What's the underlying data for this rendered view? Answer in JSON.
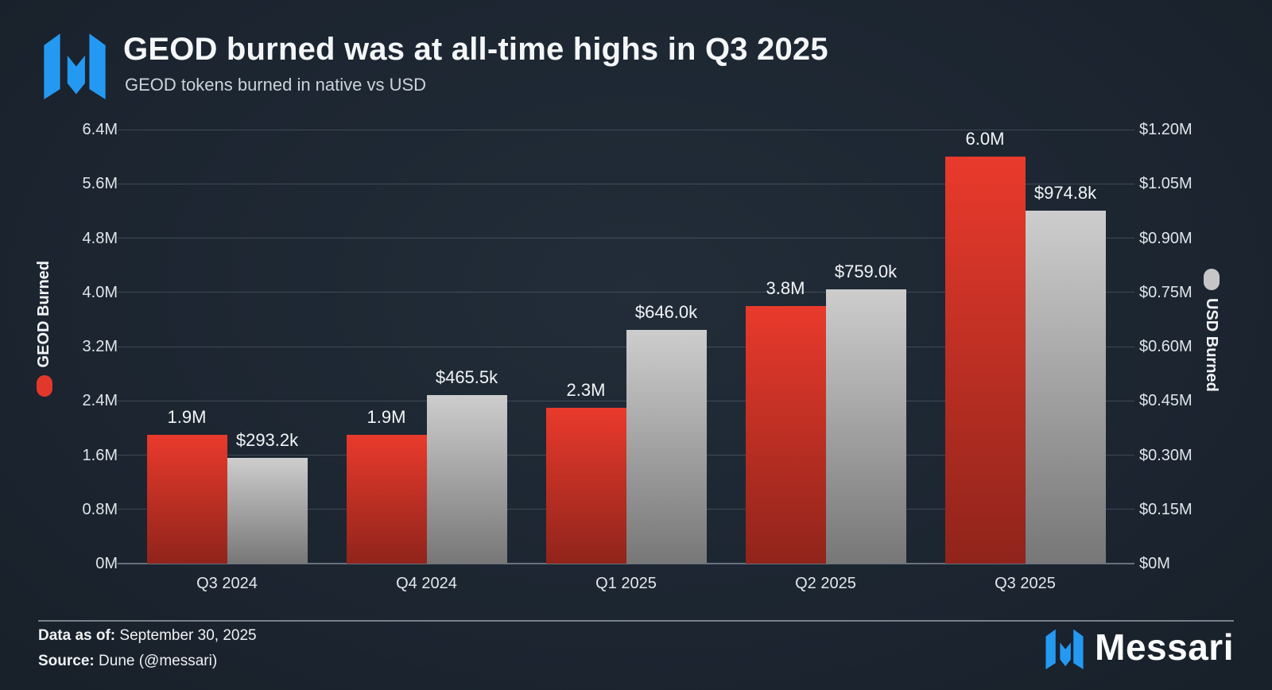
{
  "header": {
    "title": "GEOD burned was at all-time highs in Q3 2025",
    "subtitle": "GEOD tokens burned in native vs USD",
    "logo_icon": "messari-logo"
  },
  "chart_data": {
    "type": "bar",
    "title": "GEOD burned was at all-time highs in Q3 2025",
    "subtitle": "GEOD tokens burned in native vs USD",
    "categories": [
      "Q3 2024",
      "Q4 2024",
      "Q1 2025",
      "Q2 2025",
      "Q3 2025"
    ],
    "series": [
      {
        "name": "GEOD Burned",
        "axis": "left",
        "unit": "M GEOD",
        "values": [
          1.9,
          1.9,
          2.3,
          3.8,
          6.0
        ],
        "labels": [
          "1.9M",
          "1.9M",
          "2.3M",
          "3.8M",
          "6.0M"
        ],
        "color_top": "#e93a2c",
        "color_bottom": "#90241b"
      },
      {
        "name": "USD Burned",
        "axis": "right",
        "unit": "$M",
        "values": [
          0.2932,
          0.4655,
          0.646,
          0.759,
          0.9748
        ],
        "labels": [
          "$293.2k",
          "$465.5k",
          "$646.0k",
          "$759.0k",
          "$974.8k"
        ],
        "color_top": "#cdcdcd",
        "color_bottom": "#777777"
      }
    ],
    "left_axis": {
      "label": "GEOD Burned",
      "max": 6.4,
      "ticks": [
        "6.4M",
        "5.6M",
        "4.8M",
        "4.0M",
        "3.2M",
        "2.4M",
        "1.6M",
        "0.8M",
        "0M"
      ]
    },
    "right_axis": {
      "label": "USD Burned",
      "max": 1.2,
      "ticks": [
        "$1.20M",
        "$1.05M",
        "$0.90M",
        "$0.75M",
        "$0.60M",
        "$0.45M",
        "$0.30M",
        "$0.15M",
        "$0M"
      ]
    },
    "grid": true,
    "legend_position": "beside-axes"
  },
  "footer": {
    "data_as_of_label": "Data as of:",
    "data_as_of_value": " September 30, 2025",
    "source_label": "Source:",
    "source_value": " Dune (@messari)",
    "brand_wordmark": "Messari"
  },
  "colors": {
    "background": "#1b242f",
    "accent_blue": "#2499f2",
    "bar_red": "#e2382b",
    "bar_gray": "#c6c6c7",
    "gridline": "#8c9aa8",
    "text_primary": "#f4f6f8",
    "text_secondary": "#ccd4db"
  }
}
